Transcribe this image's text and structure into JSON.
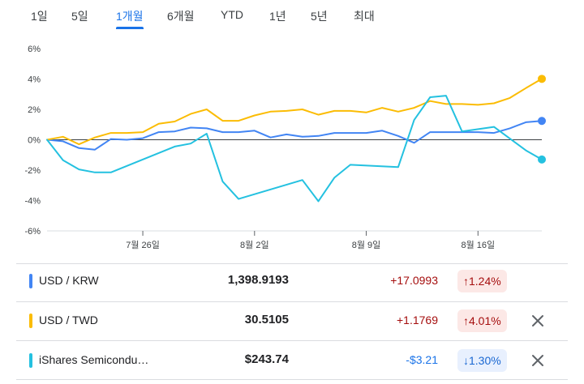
{
  "tabs": [
    {
      "label": "1일",
      "active": false
    },
    {
      "label": "5일",
      "active": false
    },
    {
      "label": "1개월",
      "active": true
    },
    {
      "label": "6개월",
      "active": false
    },
    {
      "label": "YTD",
      "active": false
    },
    {
      "label": "1년",
      "active": false
    },
    {
      "label": "5년",
      "active": false
    },
    {
      "label": "최대",
      "active": false
    }
  ],
  "legend": [
    {
      "name": "USD / KRW",
      "price": "1,398.9193",
      "change": "+17.0993",
      "percent": "1.24%",
      "direction": "up",
      "color": "#4285f4",
      "removable": false
    },
    {
      "name": "USD / TWD",
      "price": "30.5105",
      "change": "+1.1769",
      "percent": "4.01%",
      "direction": "up",
      "color": "#fbbc04",
      "removable": true
    },
    {
      "name": "iShares Semicondu…",
      "price": "$243.74",
      "change": "-$3.21",
      "percent": "1.30%",
      "direction": "down",
      "color": "#24c1e0",
      "removable": true
    }
  ],
  "chart_data": {
    "type": "line",
    "ylim": [
      -6,
      6
    ],
    "yticks": [
      6,
      4,
      2,
      0,
      -2,
      -4,
      -6
    ],
    "ytick_labels": [
      "6%",
      "4%",
      "2%",
      "0%",
      "-2%",
      "-4%",
      "-6%"
    ],
    "xticks": [
      {
        "x": 6,
        "label": "7월 26일"
      },
      {
        "x": 13,
        "label": "8월 2일"
      },
      {
        "x": 20,
        "label": "8월 9일"
      },
      {
        "x": 27,
        "label": "8월 16일"
      }
    ],
    "xlim": [
      0,
      31
    ],
    "series": [
      {
        "name": "USD / KRW",
        "color": "#4285f4",
        "x": [
          0,
          1,
          2,
          3,
          4,
          5,
          6,
          7,
          8,
          9,
          10,
          11,
          12,
          13,
          14,
          15,
          16,
          17,
          18,
          19,
          20,
          21,
          22,
          23,
          24,
          25,
          26,
          27,
          28,
          29,
          30,
          31
        ],
        "values": [
          0,
          -0.1,
          -0.55,
          -0.65,
          0.05,
          0,
          0.1,
          0.5,
          0.55,
          0.8,
          0.75,
          0.5,
          0.5,
          0.6,
          0.15,
          0.35,
          0.2,
          0.25,
          0.45,
          0.45,
          0.45,
          0.6,
          0.25,
          -0.2,
          0.5,
          0.5,
          0.5,
          0.5,
          0.45,
          0.75,
          1.15,
          1.24
        ]
      },
      {
        "name": "USD / TWD",
        "color": "#fbbc04",
        "x": [
          0,
          1,
          2,
          3,
          4,
          5,
          6,
          7,
          8,
          9,
          10,
          11,
          12,
          13,
          14,
          15,
          16,
          17,
          18,
          19,
          20,
          21,
          22,
          23,
          24,
          25,
          26,
          27,
          28,
          29,
          30,
          31
        ],
        "values": [
          0,
          0.2,
          -0.3,
          0.15,
          0.45,
          0.45,
          0.5,
          1.05,
          1.2,
          1.7,
          2.0,
          1.25,
          1.25,
          1.6,
          1.85,
          1.9,
          2.0,
          1.65,
          1.9,
          1.9,
          1.8,
          2.1,
          1.85,
          2.1,
          2.55,
          2.35,
          2.35,
          2.3,
          2.4,
          2.75,
          3.4,
          4.01
        ]
      },
      {
        "name": "iShares Semicondu…",
        "color": "#24c1e0",
        "x": [
          0,
          1,
          2,
          3,
          4,
          8,
          9,
          10,
          11,
          12,
          16,
          17,
          18,
          19,
          22,
          23,
          24,
          25,
          26,
          28,
          30,
          31
        ],
        "values": [
          0,
          -1.35,
          -1.95,
          -2.15,
          -2.15,
          -0.45,
          -0.25,
          0.4,
          -2.75,
          -3.9,
          -2.65,
          -4.05,
          -2.5,
          -1.65,
          -1.8,
          1.3,
          2.8,
          2.9,
          0.55,
          0.85,
          -0.7,
          -1.3
        ]
      }
    ]
  }
}
